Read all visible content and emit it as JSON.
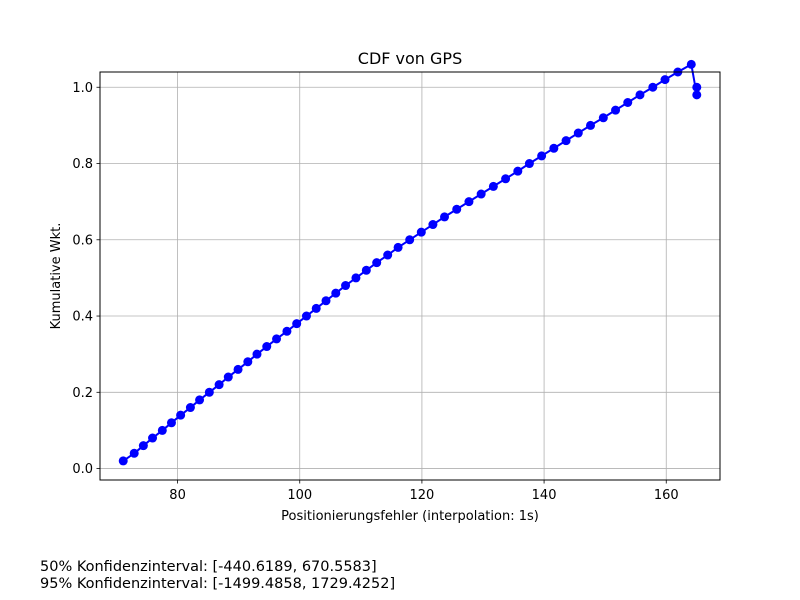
{
  "chart_data": {
    "type": "line",
    "title": "CDF von GPS",
    "xlabel": "Positionierungsfehler (interpolation: 1s)",
    "ylabel": "Kumulative Wkt.",
    "xlim": [
      67.3,
      168.8
    ],
    "ylim": [
      -0.03,
      1.04
    ],
    "xticks": [
      80,
      100,
      120,
      140,
      160
    ],
    "yticks": [
      0.0,
      0.2,
      0.4,
      0.6,
      0.8,
      1.0
    ],
    "ytick_labels": [
      "0.0",
      "0.2",
      "0.4",
      "0.6",
      "0.8",
      "1.0"
    ],
    "grid": true,
    "marker": "circle",
    "series": [
      {
        "color": "#0000ff",
        "x": [
          71.1,
          72.9,
          74.4,
          75.9,
          77.5,
          79.0,
          80.5,
          82.1,
          83.6,
          85.2,
          86.8,
          88.3,
          89.9,
          91.5,
          93.0,
          94.6,
          96.2,
          97.9,
          99.5,
          101.1,
          102.7,
          104.3,
          105.9,
          107.5,
          109.2,
          110.9,
          112.6,
          114.4,
          116.1,
          118.0,
          119.9,
          121.8,
          123.7,
          125.7,
          127.7,
          129.7,
          131.7,
          133.7,
          135.7,
          137.6,
          139.6,
          141.6,
          143.6,
          145.6,
          147.6,
          149.7,
          151.7,
          153.7,
          155.7,
          157.8,
          159.8,
          161.9,
          164.1,
          165.0,
          165.0
        ],
        "y": [
          0.02,
          0.04,
          0.06,
          0.08,
          0.1,
          0.12,
          0.14,
          0.16,
          0.18,
          0.2,
          0.22,
          0.24,
          0.26,
          0.28,
          0.3,
          0.32,
          0.34,
          0.36,
          0.38,
          0.4,
          0.42,
          0.44,
          0.46,
          0.48,
          0.5,
          0.52,
          0.54,
          0.56,
          0.58,
          0.6,
          0.62,
          0.64,
          0.66,
          0.68,
          0.7,
          0.72,
          0.74,
          0.76,
          0.78,
          0.8,
          0.82,
          0.84,
          0.86,
          0.88,
          0.9,
          0.92,
          0.94,
          0.96,
          0.98,
          1.0,
          1.02,
          1.04,
          1.06,
          0.98,
          1.0
        ]
      }
    ]
  },
  "annotations": {
    "ci50": "50% Konfidenzinterval: [-440.6189, 670.5583]",
    "ci95": "95% Konfidenzinterval: [-1499.4858, 1729.4252]"
  }
}
